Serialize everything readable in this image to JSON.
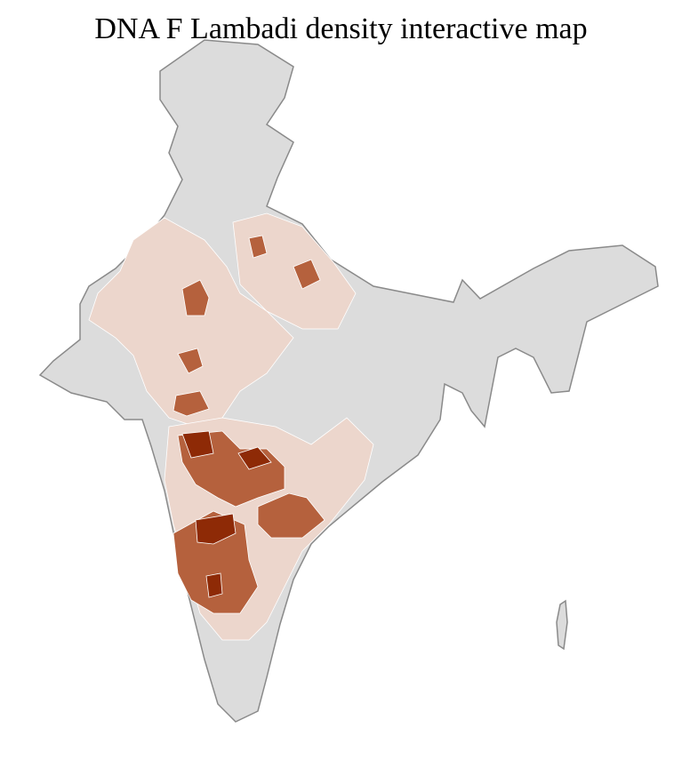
{
  "title": "DNA F Lambadi density interactive map",
  "colors": {
    "no_data": "#dcdcdc",
    "low": "#ecd6cc",
    "medium": "#b5613d",
    "high": "#8e2a06",
    "state_border": "#8a8a8a",
    "district_border": "#ffffff"
  }
}
